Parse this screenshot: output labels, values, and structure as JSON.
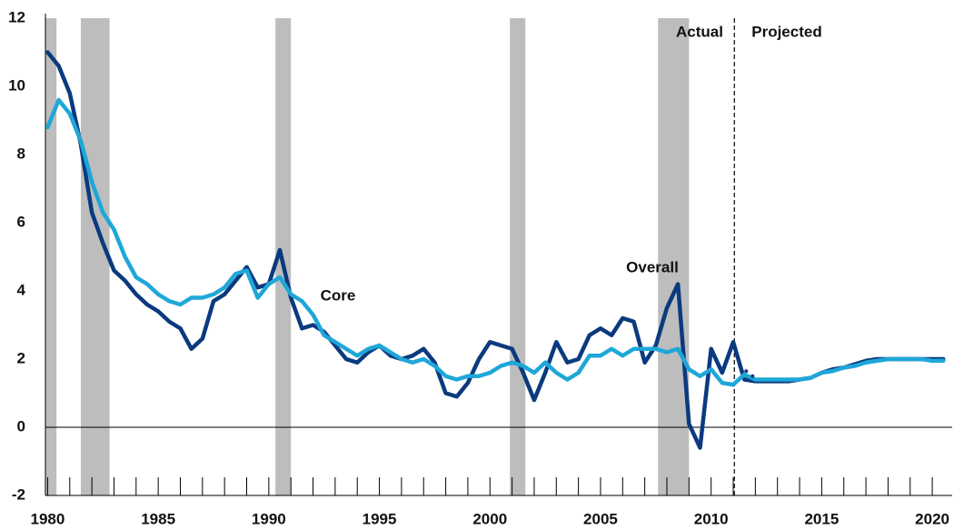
{
  "chart_data": {
    "type": "line",
    "annotations": [
      "Actual",
      "Projected",
      "Core",
      "Overall"
    ],
    "x": [
      1980,
      1980.5,
      1981,
      1981.5,
      1982,
      1982.5,
      1983,
      1983.5,
      1984,
      1984.5,
      1985,
      1985.5,
      1986,
      1986.5,
      1987,
      1987.5,
      1988,
      1988.5,
      1989,
      1989.5,
      1990,
      1990.5,
      1991,
      1991.5,
      1992,
      1992.5,
      1993,
      1993.5,
      1994,
      1994.5,
      1995,
      1995.5,
      1996,
      1996.5,
      1997,
      1997.5,
      1998,
      1998.5,
      1999,
      1999.5,
      2000,
      2000.5,
      2001,
      2001.5,
      2002,
      2002.5,
      2003,
      2003.5,
      2004,
      2004.5,
      2005,
      2005.5,
      2006,
      2006.5,
      2007,
      2007.5,
      2008,
      2008.5,
      2009,
      2009.5,
      2010,
      2010.5,
      2011,
      2011.5,
      2012,
      2012.5,
      2013,
      2013.5,
      2014,
      2014.5,
      2015,
      2015.5,
      2016,
      2016.5,
      2017,
      2017.5,
      2018,
      2018.5,
      2019,
      2019.5,
      2020,
      2020.5
    ],
    "series": [
      {
        "name": "Overall",
        "color": "#0b3a7e",
        "style": "solid",
        "values": [
          11.0,
          10.6,
          9.8,
          8.3,
          6.3,
          5.4,
          4.6,
          4.3,
          3.9,
          3.6,
          3.4,
          3.1,
          2.9,
          2.3,
          2.6,
          3.7,
          3.9,
          4.3,
          4.7,
          4.1,
          4.2,
          5.2,
          3.8,
          2.9,
          3.0,
          2.8,
          2.4,
          2.0,
          1.9,
          2.2,
          2.4,
          2.1,
          2.0,
          2.1,
          2.3,
          1.9,
          1.0,
          0.9,
          1.3,
          2.0,
          2.5,
          2.4,
          2.3,
          1.6,
          0.8,
          1.6,
          2.5,
          1.9,
          2.0,
          2.7,
          2.9,
          2.7,
          3.2,
          3.1,
          1.9,
          2.4,
          3.5,
          4.2,
          0.1,
          -0.6,
          2.3,
          1.6,
          2.5,
          1.4,
          1.35,
          1.35,
          1.35,
          1.35,
          1.4,
          1.45,
          1.6,
          1.7,
          1.75,
          1.85,
          1.95,
          2.0,
          2.0,
          2.0,
          2.0,
          2.0,
          2.0,
          2.0
        ]
      },
      {
        "name": "Core",
        "color": "#1ea7d8",
        "style": "solid",
        "values": [
          8.8,
          9.6,
          9.2,
          8.4,
          7.2,
          6.3,
          5.8,
          5.0,
          4.4,
          4.2,
          3.9,
          3.7,
          3.6,
          3.8,
          3.8,
          3.9,
          4.1,
          4.5,
          4.6,
          3.8,
          4.2,
          4.4,
          3.9,
          3.7,
          3.3,
          2.7,
          2.5,
          2.3,
          2.1,
          2.3,
          2.4,
          2.2,
          2.0,
          1.9,
          2.0,
          1.8,
          1.5,
          1.4,
          1.5,
          1.5,
          1.6,
          1.8,
          1.9,
          1.8,
          1.6,
          1.9,
          1.6,
          1.4,
          1.6,
          2.1,
          2.1,
          2.3,
          2.1,
          2.3,
          2.3,
          2.3,
          2.2,
          2.3,
          1.7,
          1.5,
          1.7,
          1.3,
          1.25,
          1.55,
          1.4,
          1.4,
          1.4,
          1.4,
          1.4,
          1.45,
          1.6,
          1.65,
          1.75,
          1.8,
          1.9,
          1.95,
          2.0,
          2.0,
          2.0,
          2.0,
          1.95,
          1.95
        ]
      },
      {
        "color": "#0b3a7e",
        "style": "dotted",
        "x": [
          2011.3,
          2011.5,
          2011.75,
          2012.0
        ],
        "values": [
          1.8,
          1.7,
          1.55,
          1.45
        ]
      }
    ],
    "recessions": [
      [
        1979.9,
        1980.4
      ],
      [
        1981.5,
        1982.8
      ],
      [
        1990.3,
        1991.0
      ],
      [
        2000.9,
        2001.6
      ],
      [
        2007.6,
        2009.0
      ]
    ],
    "recession_color": "#bdbdbd",
    "divider_x": 2011.05,
    "xlim": [
      1979.9,
      2020.9
    ],
    "ylim": [
      -2,
      12
    ],
    "xticks": [
      1980,
      1985,
      1990,
      1995,
      2000,
      2005,
      2010,
      2015,
      2020
    ],
    "xminorticks": [
      1980,
      1981,
      1982,
      1983,
      1984,
      1985,
      1986,
      1987,
      1988,
      1989,
      1990,
      1991,
      1992,
      1993,
      1994,
      1995,
      1996,
      1997,
      1998,
      1999,
      2000,
      2001,
      2002,
      2003,
      2004,
      2005,
      2006,
      2007,
      2008,
      2009,
      2010,
      2011,
      2012,
      2013,
      2014,
      2015,
      2016,
      2017,
      2018,
      2019,
      2020
    ],
    "yticks": [
      -2,
      0,
      2,
      4,
      6,
      8,
      10,
      12
    ]
  }
}
